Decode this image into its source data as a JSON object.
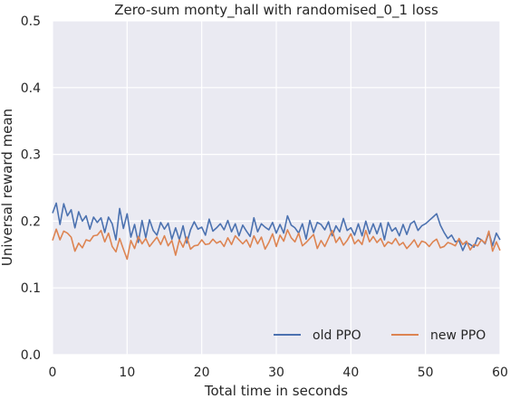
{
  "chart_data": {
    "type": "line",
    "title": "Zero-sum monty_hall with randomised_0_1 loss",
    "xlabel": "Total time in seconds",
    "ylabel": "Universal reward mean",
    "xlim": [
      0,
      60
    ],
    "ylim": [
      0,
      0.5
    ],
    "xticks": [
      0,
      10,
      20,
      30,
      40,
      50,
      60
    ],
    "yticks": [
      0.0,
      0.1,
      0.2,
      0.3,
      0.4,
      0.5
    ],
    "xtick_labels": [
      "0",
      "10",
      "20",
      "30",
      "40",
      "50",
      "60"
    ],
    "ytick_labels": [
      "0.0",
      "0.1",
      "0.2",
      "0.3",
      "0.4",
      "0.5"
    ],
    "grid": true,
    "legend_position": "bottom-right",
    "background": "#eaeaf2",
    "series": [
      {
        "name": "old PPO",
        "color": "#4c72b0",
        "x": [
          0,
          0.5,
          1,
          1.5,
          2,
          2.5,
          3,
          3.5,
          4,
          4.5,
          5,
          5.5,
          6,
          6.5,
          7,
          7.5,
          8,
          8.5,
          9,
          9.5,
          10,
          10.5,
          11,
          11.5,
          12,
          12.5,
          13,
          13.5,
          14,
          14.5,
          15,
          15.5,
          16,
          16.5,
          17,
          17.5,
          18,
          18.5,
          19,
          19.5,
          20,
          20.5,
          21,
          21.5,
          22,
          22.5,
          23,
          23.5,
          24,
          24.5,
          25,
          25.5,
          26,
          26.5,
          27,
          27.5,
          28,
          28.5,
          29,
          29.5,
          30,
          30.5,
          31,
          31.5,
          32,
          32.5,
          33,
          33.5,
          34,
          34.5,
          35,
          35.5,
          36,
          36.5,
          37,
          37.5,
          38,
          38.5,
          39,
          39.5,
          40,
          40.5,
          41,
          41.5,
          42,
          42.5,
          43,
          43.5,
          44,
          44.5,
          45,
          45.5,
          46,
          46.5,
          47,
          47.5,
          48,
          48.5,
          49,
          49.5,
          50,
          50.5,
          51,
          51.5,
          52,
          52.5,
          53,
          53.5,
          54,
          54.5,
          55,
          55.5,
          56,
          56.5,
          57,
          57.5,
          58,
          58.5,
          59,
          59.5,
          60
        ],
        "values": [
          0.212,
          0.227,
          0.195,
          0.226,
          0.208,
          0.217,
          0.19,
          0.214,
          0.2,
          0.208,
          0.188,
          0.206,
          0.198,
          0.205,
          0.183,
          0.206,
          0.196,
          0.172,
          0.219,
          0.189,
          0.211,
          0.176,
          0.195,
          0.168,
          0.201,
          0.175,
          0.202,
          0.186,
          0.179,
          0.198,
          0.188,
          0.197,
          0.173,
          0.19,
          0.172,
          0.193,
          0.167,
          0.187,
          0.199,
          0.188,
          0.191,
          0.179,
          0.203,
          0.185,
          0.19,
          0.196,
          0.187,
          0.201,
          0.184,
          0.196,
          0.178,
          0.194,
          0.185,
          0.177,
          0.205,
          0.184,
          0.196,
          0.191,
          0.187,
          0.198,
          0.182,
          0.195,
          0.182,
          0.208,
          0.194,
          0.19,
          0.182,
          0.196,
          0.173,
          0.201,
          0.183,
          0.198,
          0.195,
          0.187,
          0.199,
          0.178,
          0.193,
          0.184,
          0.204,
          0.186,
          0.19,
          0.179,
          0.196,
          0.178,
          0.2,
          0.181,
          0.196,
          0.181,
          0.197,
          0.172,
          0.198,
          0.185,
          0.19,
          0.178,
          0.195,
          0.18,
          0.196,
          0.2,
          0.186,
          0.193,
          0.196,
          0.201,
          0.206,
          0.211,
          0.194,
          0.183,
          0.174,
          0.179,
          0.169,
          0.171,
          0.156,
          0.168,
          0.165,
          0.161,
          0.175,
          0.172,
          0.166,
          0.183,
          0.163,
          0.182,
          0.172
        ],
        "values_note": ""
      },
      {
        "name": "new PPO",
        "color": "#dd8452",
        "x": [
          0,
          0.5,
          1,
          1.5,
          2,
          2.5,
          3,
          3.5,
          4,
          4.5,
          5,
          5.5,
          6,
          6.5,
          7,
          7.5,
          8,
          8.5,
          9,
          9.5,
          10,
          10.5,
          11,
          11.5,
          12,
          12.5,
          13,
          13.5,
          14,
          14.5,
          15,
          15.5,
          16,
          16.5,
          17,
          17.5,
          18,
          18.5,
          19,
          19.5,
          20,
          20.5,
          21,
          21.5,
          22,
          22.5,
          23,
          23.5,
          24,
          24.5,
          25,
          25.5,
          26,
          26.5,
          27,
          27.5,
          28,
          28.5,
          29,
          29.5,
          30,
          30.5,
          31,
          31.5,
          32,
          32.5,
          33,
          33.5,
          34,
          34.5,
          35,
          35.5,
          36,
          36.5,
          37,
          37.5,
          38,
          38.5,
          39,
          39.5,
          40,
          40.5,
          41,
          41.5,
          42,
          42.5,
          43,
          43.5,
          44,
          44.5,
          45,
          45.5,
          46,
          46.5,
          47,
          47.5,
          48,
          48.5,
          49,
          49.5,
          50,
          50.5,
          51,
          51.5,
          52,
          52.5,
          53,
          53.5,
          54,
          54.5,
          55,
          55.5,
          56,
          56.5,
          57,
          57.5,
          58,
          58.5,
          59,
          59.5,
          60
        ],
        "values": [
          0.171,
          0.188,
          0.172,
          0.185,
          0.182,
          0.176,
          0.155,
          0.167,
          0.16,
          0.172,
          0.17,
          0.178,
          0.179,
          0.186,
          0.169,
          0.182,
          0.162,
          0.154,
          0.174,
          0.158,
          0.143,
          0.171,
          0.159,
          0.177,
          0.166,
          0.174,
          0.162,
          0.169,
          0.176,
          0.165,
          0.178,
          0.163,
          0.171,
          0.149,
          0.172,
          0.161,
          0.176,
          0.158,
          0.163,
          0.164,
          0.172,
          0.165,
          0.166,
          0.173,
          0.167,
          0.17,
          0.162,
          0.175,
          0.165,
          0.178,
          0.172,
          0.166,
          0.172,
          0.161,
          0.178,
          0.166,
          0.176,
          0.158,
          0.168,
          0.181,
          0.162,
          0.179,
          0.17,
          0.187,
          0.175,
          0.169,
          0.182,
          0.163,
          0.168,
          0.174,
          0.18,
          0.159,
          0.171,
          0.162,
          0.174,
          0.186,
          0.168,
          0.176,
          0.164,
          0.171,
          0.181,
          0.166,
          0.172,
          0.165,
          0.186,
          0.169,
          0.177,
          0.168,
          0.174,
          0.162,
          0.169,
          0.166,
          0.174,
          0.164,
          0.168,
          0.159,
          0.165,
          0.172,
          0.161,
          0.17,
          0.168,
          0.162,
          0.169,
          0.173,
          0.16,
          0.162,
          0.168,
          0.166,
          0.163,
          0.174,
          0.165,
          0.17,
          0.157,
          0.165,
          0.163,
          0.172,
          0.167,
          0.185,
          0.155,
          0.169,
          0.156
        ]
      }
    ]
  }
}
